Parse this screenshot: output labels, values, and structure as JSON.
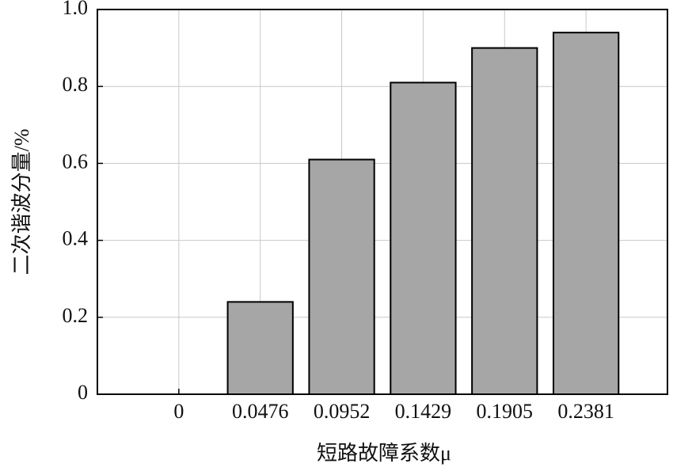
{
  "chart_data": {
    "type": "bar",
    "x_label": "短路故障系数μ",
    "y_label": "二次谐波分量/%",
    "categories": [
      "0",
      "0.0476",
      "0.0952",
      "0.1429",
      "0.1905",
      "0.2381"
    ],
    "values": [
      0,
      0.24,
      0.61,
      0.81,
      0.9,
      0.94
    ],
    "color": "#a6a6a6",
    "ylim": [
      0,
      1
    ],
    "yticks": [
      0,
      0.2,
      0.4,
      0.6,
      0.8,
      {
        "value": 1,
        "label": "1.0"
      }
    ],
    "grid": true
  }
}
